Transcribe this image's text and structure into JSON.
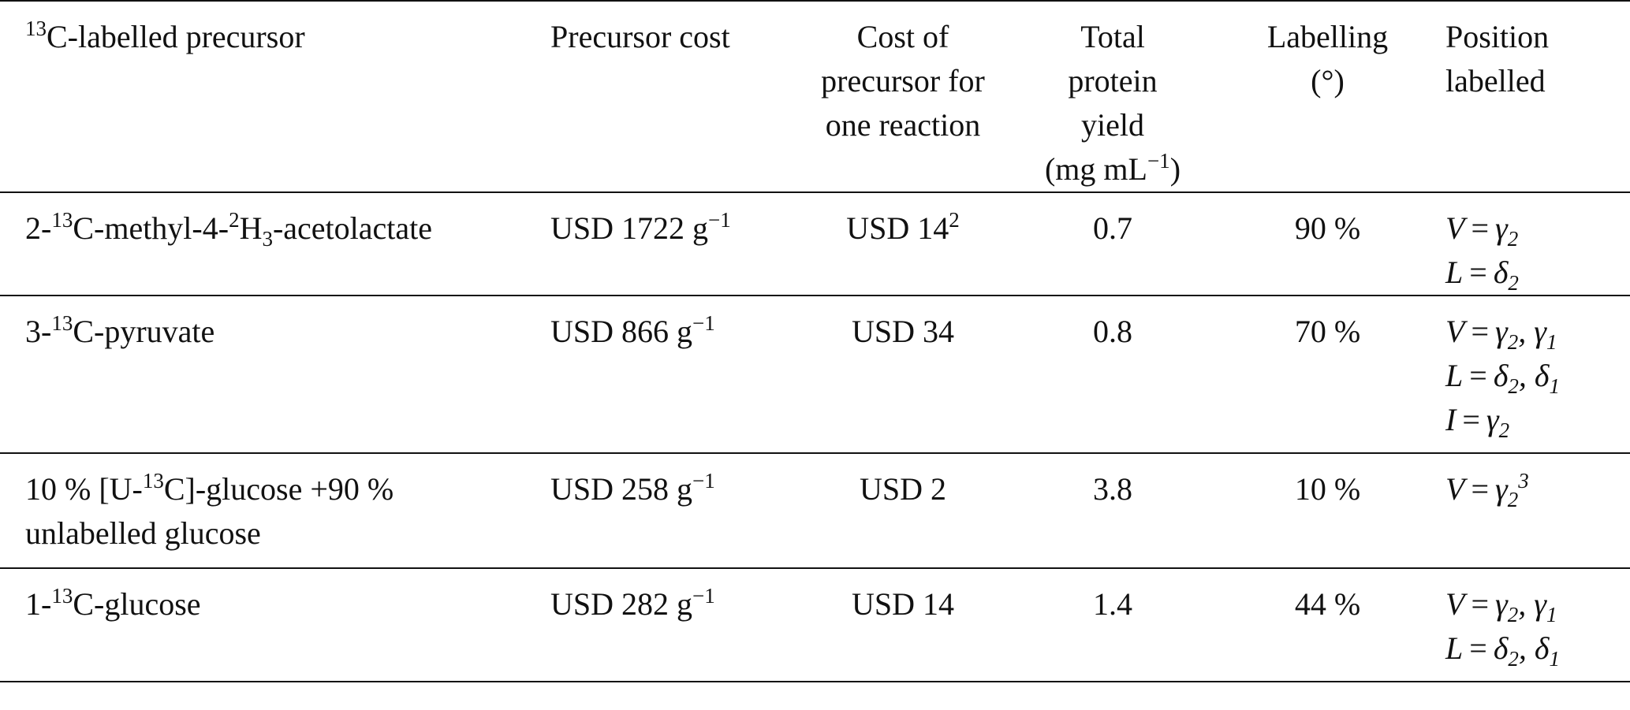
{
  "table": {
    "headers": {
      "precursor": {
        "sup": "13",
        "text": "C-labelled precursor"
      },
      "cost": [
        "Precursor cost"
      ],
      "cost_per_reaction": [
        "Cost of",
        "precursor for",
        "one reaction"
      ],
      "yield": [
        "Total",
        "protein",
        "yield",
        "(mg mL",
        "−1",
        ")"
      ],
      "labelling": [
        "Labelling",
        "(°)"
      ],
      "position": [
        "Position",
        "labelled"
      ]
    },
    "rows": [
      {
        "precursor": {
          "a": "2-",
          "sup1": "13",
          "b": "C-methyl-4-",
          "sup2": "2",
          "c": "H",
          "sub": "3",
          "d": "-acetolactate"
        },
        "cost": {
          "text": "USD 1722 g",
          "sup": "−1"
        },
        "cost_per_reaction": {
          "text": "USD 14",
          "sup": "2"
        },
        "yield": "0.7",
        "labelling": "90 %",
        "position": [
          {
            "lhs": "V",
            "rhs": "γ",
            "sub": "2",
            "rest": ""
          },
          {
            "lhs": "L",
            "rhs": "δ",
            "sub": "2",
            "rest": ""
          }
        ]
      },
      {
        "precursor": {
          "a": "3-",
          "sup1": "13",
          "b": "C-pyruvate"
        },
        "cost": {
          "text": "USD 866 g",
          "sup": "−1"
        },
        "cost_per_reaction": {
          "text": "USD 34"
        },
        "yield": "0.8",
        "labelling": "70 %",
        "position": [
          {
            "lhs": "V",
            "rhs": "γ",
            "sub": "2",
            "rest": ", γ",
            "sub2": "1"
          },
          {
            "lhs": "L",
            "rhs": "δ",
            "sub": "2",
            "rest": ", δ",
            "sub2": "1"
          },
          {
            "lhs": "I",
            "rhs": "γ",
            "sub": "2",
            "rest": ""
          }
        ]
      },
      {
        "precursor": {
          "a": "10 % [U-",
          "sup1": "13",
          "b": "C]-glucose +90 %",
          "line2": "unlabelled glucose"
        },
        "cost": {
          "text": "USD 258 g",
          "sup": "−1"
        },
        "cost_per_reaction": {
          "text": "USD 2"
        },
        "yield": "3.8",
        "labelling": "10 %",
        "position": [
          {
            "lhs": "V",
            "rhs": "γ",
            "sub": "2",
            "sup": "3"
          }
        ]
      },
      {
        "precursor": {
          "a": "1-",
          "sup1": "13",
          "b": "C-glucose"
        },
        "cost": {
          "text": "USD 282 g",
          "sup": "−1"
        },
        "cost_per_reaction": {
          "text": "USD 14"
        },
        "yield": "1.4",
        "labelling": "44 %",
        "position": [
          {
            "lhs": "V",
            "rhs": "γ",
            "sub": "2",
            "rest": ", γ",
            "sub2": "1"
          },
          {
            "lhs": "L",
            "rhs": "δ",
            "sub": "2",
            "rest": ", δ",
            "sub2": "1"
          }
        ]
      }
    ]
  }
}
